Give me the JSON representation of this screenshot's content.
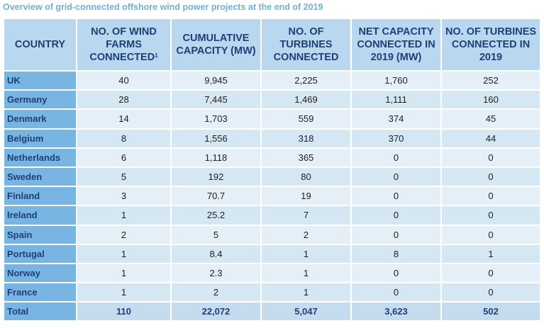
{
  "title": "Overview of grid-connected offshore wind power projects at the end of 2019",
  "headers": {
    "country": "COUNTRY",
    "farms": "NO. OF WIND FARMS CONNECTED",
    "farms_sup": "1",
    "capacity": "CUMULATIVE CAPACITY (MW)",
    "turbines": "NO. OF TURBINES CONNECTED",
    "net2019": "NET CAPACITY CONNECTED IN 2019 (MW)",
    "turbines2019": "NO. OF TURBINES CONNECTED IN 2019"
  },
  "rows": [
    {
      "country": "UK",
      "farms": "40",
      "capacity": "9,945",
      "turbines": "2,225",
      "net2019": "1,760",
      "turbines2019": "252"
    },
    {
      "country": "Germany",
      "farms": "28",
      "capacity": "7,445",
      "turbines": "1,469",
      "net2019": "1,111",
      "turbines2019": "160"
    },
    {
      "country": "Denmark",
      "farms": "14",
      "capacity": "1,703",
      "turbines": "559",
      "net2019": "374",
      "turbines2019": "45"
    },
    {
      "country": "Belgium",
      "farms": "8",
      "capacity": "1,556",
      "turbines": "318",
      "net2019": "370",
      "turbines2019": "44"
    },
    {
      "country": "Netherlands",
      "farms": "6",
      "capacity": "1,118",
      "turbines": "365",
      "net2019": "0",
      "turbines2019": "0"
    },
    {
      "country": "Sweden",
      "farms": "5",
      "capacity": "192",
      "turbines": "80",
      "net2019": "0",
      "turbines2019": "0"
    },
    {
      "country": "Finland",
      "farms": "3",
      "capacity": "70.7",
      "turbines": "19",
      "net2019": "0",
      "turbines2019": "0"
    },
    {
      "country": "Ireland",
      "farms": "1",
      "capacity": "25.2",
      "turbines": "7",
      "net2019": "0",
      "turbines2019": "0"
    },
    {
      "country": "Spain",
      "farms": "2",
      "capacity": "5",
      "turbines": "2",
      "net2019": "0",
      "turbines2019": "0"
    },
    {
      "country": "Portugal",
      "farms": "1",
      "capacity": "8.4",
      "turbines": "1",
      "net2019": "8",
      "turbines2019": "1"
    },
    {
      "country": "Norway",
      "farms": "1",
      "capacity": "2.3",
      "turbines": "1",
      "net2019": "0",
      "turbines2019": "0"
    },
    {
      "country": "France",
      "farms": "1",
      "capacity": "2",
      "turbines": "1",
      "net2019": "0",
      "turbines2019": "0"
    }
  ],
  "total": {
    "country": "Total",
    "farms": "110",
    "capacity": "22,072",
    "turbines": "5,047",
    "net2019": "3,623",
    "turbines2019": "502"
  }
}
